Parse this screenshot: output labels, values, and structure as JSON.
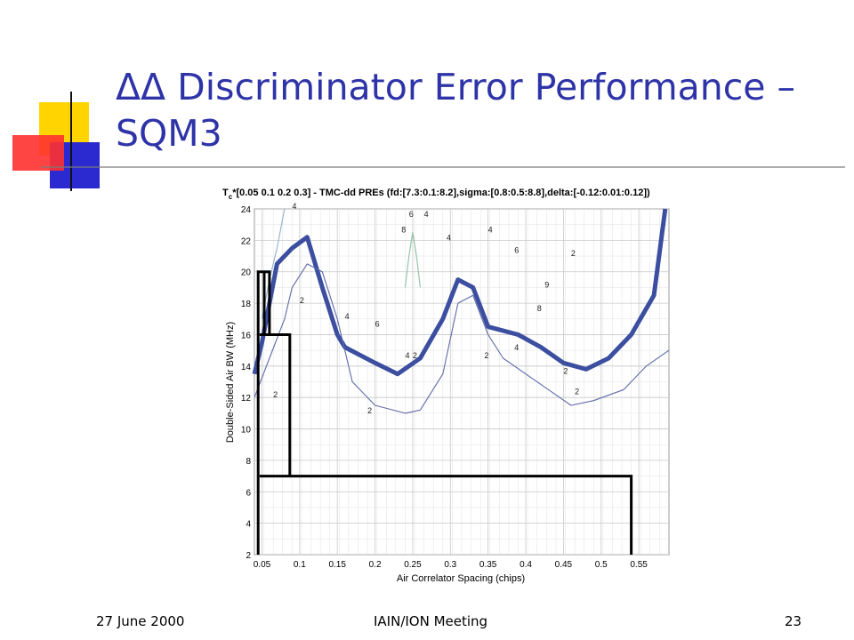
{
  "slide": {
    "title": "ΔΔ Discriminator Error Performance – SQM3",
    "footer_left": "27 June 2000",
    "footer_center": "IAIN/ION Meeting",
    "footer_right": "23",
    "colors": {
      "title": "#2e34a8",
      "accent_yellow": "#ffd400",
      "accent_blue": "#2a2ad0",
      "accent_red": "#ff2020"
    }
  },
  "chart_data": {
    "type": "contour",
    "title_prefix": "T",
    "title_sub": "c",
    "title_rest": "*[0.05 0.1 0.2 0.3] - TMC-dd PREs (fd:[7.3:0.1:8.2],sigma:[0.8:0.5:8.8],delta:[-0.12:0.01:0.12])",
    "xlabel": "Air Correlator Spacing (chips)",
    "ylabel": "Double-Sided Air BW (MHz)",
    "xlim": [
      0.04,
      0.59
    ],
    "ylim": [
      2,
      24
    ],
    "xticks": [
      "0.05",
      "0.1",
      "0.15",
      "0.2",
      "0.25",
      "0.3",
      "0.35",
      "0.4",
      "0.45",
      "0.5",
      "0.55"
    ],
    "yticks": [
      "2",
      "4",
      "6",
      "8",
      "10",
      "12",
      "14",
      "16",
      "18",
      "20",
      "22",
      "24"
    ],
    "grid": true,
    "boundary_line": [
      [
        0.045,
        2
      ],
      [
        0.045,
        20
      ],
      [
        0.053,
        20
      ],
      [
        0.053,
        16
      ],
      [
        0.053,
        20
      ],
      [
        0.06,
        20
      ],
      [
        0.06,
        16
      ],
      [
        0.047,
        16
      ],
      [
        0.087,
        16
      ],
      [
        0.087,
        7
      ],
      [
        0.047,
        7
      ],
      [
        0.54,
        7
      ],
      [
        0.54,
        2
      ]
    ],
    "contours": [
      {
        "level": "main",
        "color": "#3b4ea0",
        "points": [
          [
            0.04,
            13.5
          ],
          [
            0.05,
            15.5
          ],
          [
            0.06,
            18
          ],
          [
            0.07,
            20.5
          ],
          [
            0.09,
            21.5
          ],
          [
            0.11,
            22.2
          ],
          [
            0.13,
            19
          ],
          [
            0.15,
            16
          ],
          [
            0.16,
            15.2
          ],
          [
            0.2,
            14.2
          ],
          [
            0.23,
            13.5
          ],
          [
            0.26,
            14.5
          ],
          [
            0.29,
            17
          ],
          [
            0.31,
            19.5
          ],
          [
            0.33,
            19
          ],
          [
            0.35,
            16.5
          ],
          [
            0.39,
            16
          ],
          [
            0.42,
            15.2
          ],
          [
            0.45,
            14.2
          ],
          [
            0.48,
            13.8
          ],
          [
            0.51,
            14.5
          ],
          [
            0.54,
            16
          ],
          [
            0.57,
            18.5
          ],
          [
            0.585,
            24
          ]
        ]
      },
      {
        "level": "2",
        "color": "#5f6aa8",
        "points": [
          [
            0.04,
            12
          ],
          [
            0.06,
            14.5
          ],
          [
            0.08,
            17
          ],
          [
            0.09,
            19
          ],
          [
            0.11,
            20.5
          ],
          [
            0.13,
            20
          ],
          [
            0.15,
            17
          ],
          [
            0.17,
            13
          ],
          [
            0.2,
            11.5
          ],
          [
            0.24,
            11
          ],
          [
            0.26,
            11.2
          ],
          [
            0.29,
            13.5
          ],
          [
            0.31,
            18
          ],
          [
            0.33,
            18.5
          ],
          [
            0.35,
            16
          ],
          [
            0.37,
            14.5
          ],
          [
            0.4,
            13.5
          ],
          [
            0.43,
            12.5
          ],
          [
            0.46,
            11.5
          ],
          [
            0.49,
            11.8
          ],
          [
            0.53,
            12.5
          ],
          [
            0.56,
            14
          ],
          [
            0.59,
            15
          ]
        ]
      },
      {
        "level": "4",
        "color": "#8fb0cc",
        "points": [
          [
            0.05,
            17
          ],
          [
            0.06,
            19.5
          ],
          [
            0.07,
            21.5
          ],
          [
            0.08,
            24
          ]
        ]
      },
      {
        "level": "6",
        "color": "#8fc0a8",
        "points": [
          [
            0.24,
            19
          ],
          [
            0.245,
            21
          ],
          [
            0.25,
            22.5
          ],
          [
            0.255,
            21
          ],
          [
            0.26,
            19
          ]
        ]
      }
    ],
    "contour_labels": [
      {
        "text": "2",
        "x": 0.065,
        "y": 12
      },
      {
        "text": "2",
        "x": 0.1,
        "y": 18
      },
      {
        "text": "4",
        "x": 0.09,
        "y": 24
      },
      {
        "text": "4",
        "x": 0.16,
        "y": 17
      },
      {
        "text": "6",
        "x": 0.2,
        "y": 16.5
      },
      {
        "text": "4",
        "x": 0.24,
        "y": 14.5
      },
      {
        "text": "2",
        "x": 0.25,
        "y": 14.5
      },
      {
        "text": "2",
        "x": 0.19,
        "y": 11
      },
      {
        "text": "8",
        "x": 0.235,
        "y": 22.5
      },
      {
        "text": "6",
        "x": 0.245,
        "y": 23.5
      },
      {
        "text": "4",
        "x": 0.265,
        "y": 23.5
      },
      {
        "text": "4",
        "x": 0.295,
        "y": 22
      },
      {
        "text": "2",
        "x": 0.345,
        "y": 14.5
      },
      {
        "text": "4",
        "x": 0.35,
        "y": 22.5
      },
      {
        "text": "6",
        "x": 0.385,
        "y": 21.2
      },
      {
        "text": "9",
        "x": 0.425,
        "y": 19
      },
      {
        "text": "8",
        "x": 0.415,
        "y": 17.5
      },
      {
        "text": "4",
        "x": 0.385,
        "y": 15
      },
      {
        "text": "2",
        "x": 0.45,
        "y": 13.5
      },
      {
        "text": "2",
        "x": 0.46,
        "y": 21
      },
      {
        "text": "2",
        "x": 0.465,
        "y": 12.2
      }
    ]
  }
}
